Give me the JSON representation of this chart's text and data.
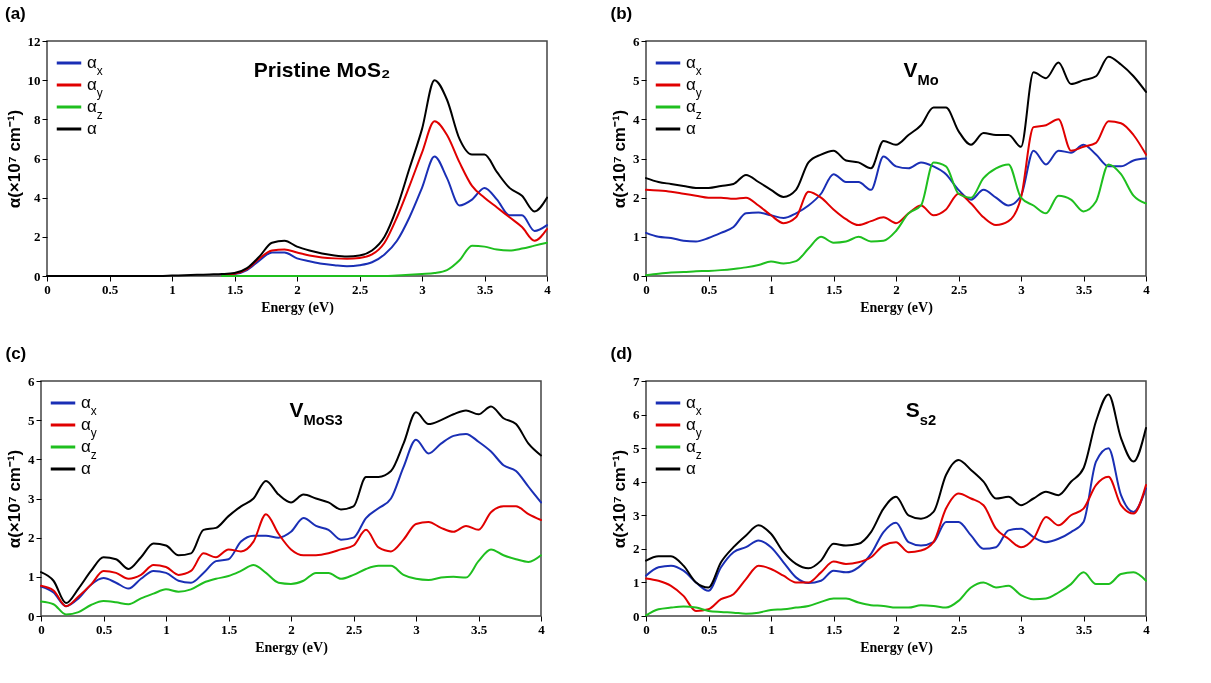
{
  "chart_data": [
    {
      "type": "line",
      "title": "(a)",
      "annotations": [
        "Pristine MoS₂"
      ],
      "xlabel": "Energy (eV)",
      "ylabel": "α(×10⁷ cm⁻¹)",
      "legend": "top left",
      "xlim": [
        0,
        4
      ],
      "xticks": [
        0,
        0.5,
        1,
        1.5,
        2,
        2.5,
        3,
        3.5,
        4
      ],
      "ylim": [
        0,
        12
      ],
      "yticks": [
        0,
        2,
        4,
        6,
        8,
        10,
        12
      ],
      "x": [
        0,
        0.1,
        0.2,
        0.3,
        0.4,
        0.5,
        0.6,
        0.7,
        0.8,
        0.9,
        1,
        1.1,
        1.2,
        1.3,
        1.4,
        1.5,
        1.6,
        1.7,
        1.8,
        1.9,
        2,
        2.1,
        2.2,
        2.3,
        2.4,
        2.5,
        2.6,
        2.7,
        2.8,
        2.9,
        3,
        3.1,
        3.2,
        3.3,
        3.4,
        3.5,
        3.6,
        3.7,
        3.8,
        3.9,
        4
      ],
      "series": [
        {
          "name": "α$_{x}$",
          "color": "#1a2fb5",
          "values": [
            null,
            null,
            null,
            null,
            null,
            null,
            null,
            null,
            null,
            null,
            null,
            null,
            null,
            null,
            0.08,
            0.1,
            0.3,
            0.8,
            1.2,
            1.2,
            0.9,
            0.75,
            0.62,
            0.55,
            0.5,
            0.55,
            0.7,
            1.1,
            1.8,
            3.0,
            4.5,
            6.1,
            5.0,
            3.6,
            3.9,
            4.5,
            3.9,
            3.1,
            3.1,
            2.3,
            2.6
          ]
        },
        {
          "name": "α$_{y}$",
          "color": "#e00000",
          "values": [
            null,
            null,
            null,
            null,
            null,
            null,
            null,
            null,
            null,
            null,
            null,
            null,
            null,
            null,
            0.08,
            0.12,
            0.35,
            0.9,
            1.3,
            1.35,
            1.2,
            1.05,
            0.95,
            0.9,
            0.88,
            0.92,
            1.1,
            1.7,
            3.0,
            4.6,
            6.3,
            7.9,
            7.2,
            5.8,
            4.6,
            4.0,
            3.5,
            3.0,
            2.5,
            1.8,
            2.4
          ]
        },
        {
          "name": "α$_{z}$",
          "color": "#1fbf1f",
          "values": [
            null,
            null,
            null,
            null,
            null,
            null,
            null,
            null,
            null,
            null,
            null,
            null,
            null,
            null,
            0,
            0,
            0,
            0,
            0,
            0,
            0,
            0,
            0,
            0,
            0,
            0,
            0,
            0,
            0.03,
            0.06,
            0.1,
            0.15,
            0.3,
            0.8,
            1.55,
            1.5,
            1.35,
            1.3,
            1.4,
            1.55,
            1.7
          ]
        },
        {
          "name": "α",
          "color": "#000000",
          "values": [
            0,
            0,
            0,
            0,
            0,
            0,
            0,
            0,
            0,
            0,
            0.02,
            0.04,
            0.06,
            0.08,
            0.1,
            0.15,
            0.4,
            1.0,
            1.7,
            1.8,
            1.5,
            1.3,
            1.15,
            1.05,
            1.0,
            1.05,
            1.3,
            2.0,
            3.5,
            5.5,
            7.5,
            10.0,
            9.0,
            7.0,
            6.2,
            6.2,
            5.3,
            4.5,
            4.1,
            3.3,
            4.0
          ]
        }
      ]
    },
    {
      "type": "line",
      "title": "(b)",
      "annotations": [
        "V$_{Mo}$"
      ],
      "xlabel": "Energy (eV)",
      "ylabel": "α(×10⁷ cm⁻¹)",
      "legend": "top left",
      "xlim": [
        0,
        4
      ],
      "xticks": [
        0,
        0.5,
        1,
        1.5,
        2,
        2.5,
        3,
        3.5,
        4
      ],
      "ylim": [
        0,
        6
      ],
      "yticks": [
        0,
        1,
        2,
        3,
        4,
        5,
        6
      ],
      "x": [
        0,
        0.1,
        0.2,
        0.3,
        0.4,
        0.5,
        0.6,
        0.7,
        0.8,
        0.9,
        1,
        1.1,
        1.2,
        1.3,
        1.4,
        1.5,
        1.6,
        1.7,
        1.8,
        1.9,
        2,
        2.1,
        2.2,
        2.3,
        2.4,
        2.5,
        2.6,
        2.7,
        2.8,
        2.9,
        3,
        3.1,
        3.2,
        3.3,
        3.4,
        3.5,
        3.6,
        3.7,
        3.8,
        3.9,
        4
      ],
      "series": [
        {
          "name": "α$_{x}$",
          "color": "#1a2fb5",
          "values": [
            1.1,
            1.0,
            0.97,
            0.9,
            0.88,
            0.97,
            1.1,
            1.25,
            1.6,
            1.62,
            1.55,
            1.48,
            1.6,
            1.8,
            2.1,
            2.6,
            2.4,
            2.4,
            2.2,
            3.05,
            2.8,
            2.75,
            2.9,
            2.8,
            2.6,
            2.2,
            1.95,
            2.2,
            2.0,
            1.8,
            2.05,
            3.2,
            2.85,
            3.2,
            3.15,
            3.35,
            3.1,
            2.8,
            2.8,
            2.95,
            3.0
          ]
        },
        {
          "name": "α$_{y}$",
          "color": "#e00000",
          "values": [
            2.2,
            2.18,
            2.15,
            2.1,
            2.05,
            2.0,
            2.0,
            1.97,
            2.0,
            1.8,
            1.55,
            1.35,
            1.5,
            2.15,
            2.0,
            1.7,
            1.45,
            1.3,
            1.4,
            1.5,
            1.35,
            1.6,
            1.8,
            1.55,
            1.7,
            2.1,
            1.85,
            1.5,
            1.3,
            1.4,
            2.0,
            3.8,
            3.85,
            4.0,
            3.2,
            3.3,
            3.4,
            3.95,
            3.9,
            3.6,
            3.1
          ]
        },
        {
          "name": "α$_{z}$",
          "color": "#1fbf1f",
          "values": [
            0.02,
            0.06,
            0.09,
            0.1,
            0.12,
            0.13,
            0.15,
            0.18,
            0.22,
            0.28,
            0.37,
            0.32,
            0.38,
            0.7,
            1.0,
            0.85,
            0.88,
            1.0,
            0.88,
            0.9,
            1.15,
            1.6,
            1.8,
            2.9,
            2.8,
            2.1,
            2.0,
            2.5,
            2.75,
            2.85,
            2.0,
            1.8,
            1.6,
            2.05,
            1.95,
            1.65,
            1.9,
            2.85,
            2.6,
            2.05,
            1.85
          ]
        },
        {
          "name": "α",
          "color": "#000000",
          "values": [
            2.5,
            2.4,
            2.35,
            2.3,
            2.25,
            2.25,
            2.3,
            2.35,
            2.58,
            2.4,
            2.2,
            2.02,
            2.2,
            2.9,
            3.1,
            3.2,
            2.95,
            2.9,
            2.75,
            3.45,
            3.35,
            3.6,
            3.85,
            4.3,
            4.3,
            3.7,
            3.35,
            3.65,
            3.6,
            3.6,
            3.3,
            5.2,
            5.05,
            5.45,
            4.9,
            5.0,
            5.1,
            5.6,
            5.4,
            5.1,
            4.7
          ]
        }
      ]
    },
    {
      "type": "line",
      "title": "(c)",
      "annotations": [
        "V$_{MoS3}$"
      ],
      "xlabel": "Energy (eV)",
      "ylabel": "α(×10⁷ cm⁻¹)",
      "legend": "top left",
      "xlim": [
        0,
        4
      ],
      "xticks": [
        0,
        0.5,
        1,
        1.5,
        2,
        2.5,
        3,
        3.5,
        4
      ],
      "ylim": [
        0,
        6
      ],
      "yticks": [
        0,
        1,
        2,
        3,
        4,
        5,
        6
      ],
      "x": [
        0,
        0.1,
        0.2,
        0.3,
        0.4,
        0.5,
        0.6,
        0.7,
        0.8,
        0.9,
        1,
        1.1,
        1.2,
        1.3,
        1.4,
        1.5,
        1.6,
        1.7,
        1.8,
        1.9,
        2,
        2.1,
        2.2,
        2.3,
        2.4,
        2.5,
        2.6,
        2.7,
        2.8,
        2.9,
        3,
        3.1,
        3.2,
        3.3,
        3.4,
        3.5,
        3.6,
        3.7,
        3.8,
        3.9,
        4
      ],
      "series": [
        {
          "name": "α$_{x}$",
          "color": "#1a2fb5",
          "values": [
            0.75,
            0.6,
            0.25,
            0.45,
            0.8,
            0.97,
            0.85,
            0.7,
            0.95,
            1.15,
            1.1,
            0.9,
            0.85,
            1.1,
            1.4,
            1.45,
            1.9,
            2.05,
            2.05,
            2.0,
            2.15,
            2.5,
            2.3,
            2.2,
            1.95,
            2.0,
            2.5,
            2.75,
            3.0,
            3.8,
            4.5,
            4.15,
            4.4,
            4.6,
            4.65,
            4.45,
            4.2,
            3.85,
            3.7,
            3.3,
            2.9
          ]
        },
        {
          "name": "α$_{y}$",
          "color": "#e00000",
          "values": [
            0.77,
            0.65,
            0.25,
            0.5,
            0.8,
            1.15,
            1.1,
            0.95,
            1.05,
            1.3,
            1.25,
            1.05,
            1.15,
            1.6,
            1.5,
            1.7,
            1.65,
            1.9,
            2.6,
            2.1,
            1.7,
            1.55,
            1.55,
            1.6,
            1.7,
            1.8,
            2.2,
            1.75,
            1.65,
            1.95,
            2.35,
            2.4,
            2.25,
            2.15,
            2.3,
            2.2,
            2.65,
            2.8,
            2.8,
            2.6,
            2.45
          ]
        },
        {
          "name": "α$_{z}$",
          "color": "#1fbf1f",
          "values": [
            0.37,
            0.3,
            0.04,
            0.1,
            0.28,
            0.38,
            0.35,
            0.3,
            0.45,
            0.57,
            0.68,
            0.62,
            0.68,
            0.85,
            0.95,
            1.02,
            1.15,
            1.3,
            1.1,
            0.85,
            0.82,
            0.9,
            1.1,
            1.1,
            0.95,
            1.05,
            1.2,
            1.28,
            1.28,
            1.05,
            0.95,
            0.92,
            0.98,
            1.0,
            0.98,
            1.4,
            1.7,
            1.55,
            1.45,
            1.38,
            1.55
          ]
        },
        {
          "name": "α",
          "color": "#000000",
          "values": [
            1.12,
            0.9,
            0.33,
            0.7,
            1.15,
            1.5,
            1.45,
            1.2,
            1.5,
            1.85,
            1.8,
            1.55,
            1.6,
            2.2,
            2.25,
            2.55,
            2.8,
            3.0,
            3.45,
            3.1,
            2.9,
            3.1,
            3.0,
            2.9,
            2.72,
            2.8,
            3.55,
            3.55,
            3.7,
            4.4,
            5.2,
            4.9,
            5.0,
            5.15,
            5.25,
            5.15,
            5.35,
            5.05,
            4.9,
            4.4,
            4.1
          ]
        }
      ]
    },
    {
      "type": "line",
      "title": "(d)",
      "annotations": [
        "S$_{s2}$"
      ],
      "xlabel": "Energy (eV)",
      "ylabel": "α(×10⁷ cm⁻¹)",
      "legend": "top left",
      "xlim": [
        0,
        4
      ],
      "xticks": [
        0,
        0.5,
        1,
        1.5,
        2,
        2.5,
        3,
        3.5,
        4
      ],
      "ylim": [
        0,
        7
      ],
      "yticks": [
        0,
        1,
        2,
        3,
        4,
        5,
        6,
        7
      ],
      "x": [
        0,
        0.1,
        0.2,
        0.3,
        0.4,
        0.5,
        0.6,
        0.7,
        0.8,
        0.9,
        1,
        1.1,
        1.2,
        1.3,
        1.4,
        1.5,
        1.6,
        1.7,
        1.8,
        1.9,
        2,
        2.1,
        2.2,
        2.3,
        2.4,
        2.5,
        2.6,
        2.7,
        2.8,
        2.9,
        3,
        3.1,
        3.2,
        3.3,
        3.4,
        3.5,
        3.6,
        3.7,
        3.8,
        3.9,
        4
      ],
      "series": [
        {
          "name": "α$_{x}$",
          "color": "#1a2fb5",
          "values": [
            1.2,
            1.45,
            1.5,
            1.35,
            1.0,
            0.75,
            1.45,
            1.9,
            2.05,
            2.25,
            2.05,
            1.6,
            1.15,
            0.98,
            1.05,
            1.35,
            1.3,
            1.45,
            1.85,
            2.5,
            2.78,
            2.2,
            2.1,
            2.2,
            2.8,
            2.8,
            2.4,
            2.0,
            2.05,
            2.55,
            2.6,
            2.35,
            2.2,
            2.3,
            2.5,
            2.8,
            4.6,
            5.0,
            3.6,
            3.1,
            3.8
          ]
        },
        {
          "name": "α$_{y}$",
          "color": "#e00000",
          "values": [
            1.12,
            1.05,
            0.9,
            0.6,
            0.15,
            0.2,
            0.5,
            0.65,
            1.1,
            1.5,
            1.4,
            1.2,
            1.0,
            1.0,
            1.3,
            1.62,
            1.55,
            1.6,
            1.75,
            2.1,
            2.2,
            1.9,
            1.95,
            2.2,
            3.2,
            3.65,
            3.5,
            3.3,
            2.6,
            2.3,
            2.05,
            2.3,
            2.95,
            2.7,
            3.0,
            3.2,
            3.9,
            4.15,
            3.3,
            3.05,
            3.9
          ]
        },
        {
          "name": "α$_{z}$",
          "color": "#1fbf1f",
          "values": [
            0.02,
            0.2,
            0.25,
            0.28,
            0.25,
            0.15,
            0.12,
            0.1,
            0.07,
            0.1,
            0.18,
            0.2,
            0.25,
            0.3,
            0.42,
            0.52,
            0.52,
            0.4,
            0.32,
            0.3,
            0.25,
            0.25,
            0.32,
            0.3,
            0.25,
            0.45,
            0.85,
            1.0,
            0.85,
            0.9,
            0.62,
            0.5,
            0.52,
            0.7,
            0.95,
            1.3,
            0.95,
            0.95,
            1.25,
            1.3,
            1.05
          ]
        },
        {
          "name": "α",
          "color": "#000000",
          "values": [
            1.65,
            1.78,
            1.78,
            1.5,
            1.0,
            0.85,
            1.6,
            2.05,
            2.4,
            2.7,
            2.45,
            1.9,
            1.55,
            1.42,
            1.65,
            2.15,
            2.1,
            2.15,
            2.5,
            3.2,
            3.55,
            3.0,
            2.9,
            3.1,
            4.2,
            4.65,
            4.35,
            4.0,
            3.5,
            3.55,
            3.3,
            3.5,
            3.7,
            3.6,
            4.0,
            4.4,
            5.8,
            6.6,
            5.3,
            4.6,
            5.6
          ]
        }
      ]
    }
  ]
}
